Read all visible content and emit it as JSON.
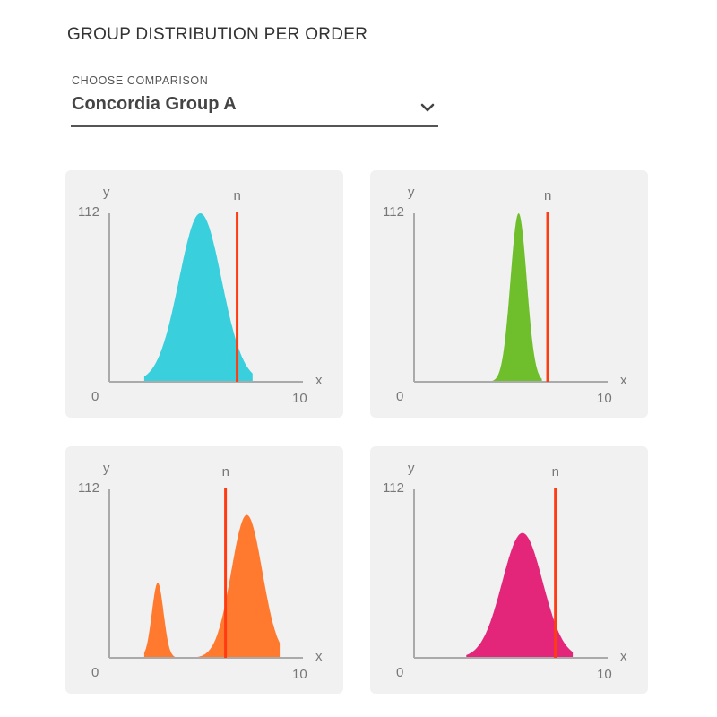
{
  "header": {
    "title": "GROUP DISTRIBUTION PER ORDER"
  },
  "comparison": {
    "label": "CHOOSE COMPARISON",
    "value": "Concordia Group A",
    "icon": "chevron-down-icon"
  },
  "chart_data": [
    {
      "type": "area",
      "xlabel": "x",
      "ylabel": "y",
      "marker_label": "n",
      "xlim": [
        0,
        10
      ],
      "ylim": [
        0,
        112
      ],
      "y_tick_labels": [
        "0",
        "112"
      ],
      "x_tick_labels": [
        "10"
      ],
      "color": "#3acfdc",
      "marker": {
        "x": 6.6,
        "color": "#ff3b12"
      },
      "series": [
        {
          "peaks": [
            {
              "mean": 4.7,
              "sd": 1.1,
              "height": 112
            }
          ],
          "range": [
            1.8,
            7.4
          ]
        }
      ]
    },
    {
      "type": "area",
      "xlabel": "x",
      "ylabel": "y",
      "marker_label": "n",
      "xlim": [
        0,
        10
      ],
      "ylim": [
        0,
        112
      ],
      "y_tick_labels": [
        "0",
        "112"
      ],
      "x_tick_labels": [
        "10"
      ],
      "color": "#6ebf2b",
      "marker": {
        "x": 6.9,
        "color": "#ff3b12"
      },
      "series": [
        {
          "peaks": [
            {
              "mean": 5.4,
              "sd": 0.42,
              "height": 112
            }
          ],
          "range": [
            4.0,
            6.6
          ]
        }
      ]
    },
    {
      "type": "area",
      "xlabel": "x",
      "ylabel": "y",
      "marker_label": "n",
      "xlim": [
        0,
        10
      ],
      "ylim": [
        0,
        112
      ],
      "y_tick_labels": [
        "0",
        "112"
      ],
      "x_tick_labels": [
        "10"
      ],
      "color": "#ff7a2f",
      "marker": {
        "x": 6.0,
        "color": "#ff3b12"
      },
      "series": [
        {
          "peaks": [
            {
              "mean": 2.5,
              "sd": 0.3,
              "height": 50
            },
            {
              "mean": 7.1,
              "sd": 0.8,
              "height": 95
            }
          ],
          "range": [
            1.8,
            8.8
          ]
        }
      ]
    },
    {
      "type": "area",
      "xlabel": "x",
      "ylabel": "y",
      "marker_label": "n",
      "xlim": [
        0,
        10
      ],
      "ylim": [
        0,
        112
      ],
      "y_tick_labels": [
        "0",
        "112"
      ],
      "x_tick_labels": [
        "10"
      ],
      "color": "#e3267a",
      "marker": {
        "x": 7.3,
        "color": "#ff3b12"
      },
      "series": [
        {
          "peaks": [
            {
              "mean": 5.6,
              "sd": 1.05,
              "height": 83
            }
          ],
          "range": [
            2.7,
            8.2
          ]
        }
      ]
    }
  ]
}
